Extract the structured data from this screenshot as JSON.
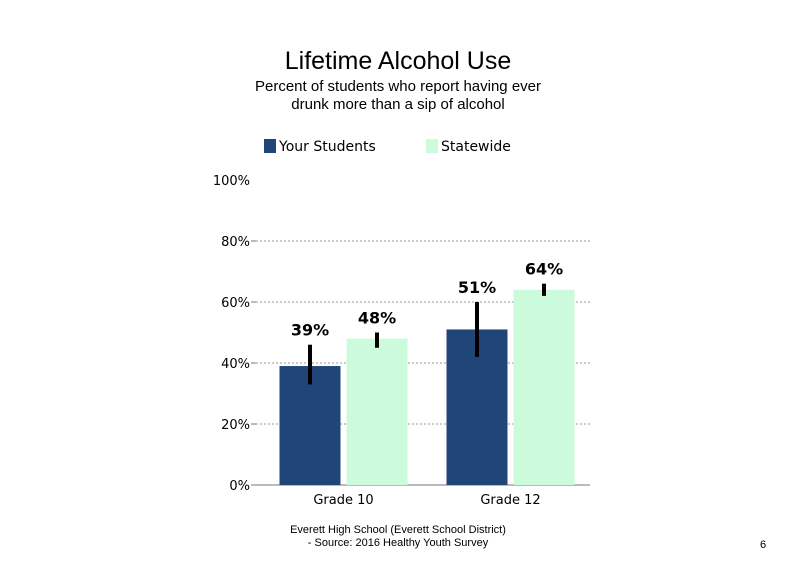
{
  "chart_data": {
    "type": "bar",
    "title": "Lifetime Alcohol Use",
    "subtitle": "Percent of students who report having ever drunk more than a sip of alcohol",
    "categories": [
      "Grade 10",
      "Grade 12"
    ],
    "series": [
      {
        "name": "Your Students",
        "color": "#1f4579",
        "values": [
          39,
          51
        ],
        "labels": [
          "39%",
          "51%"
        ],
        "error_low": [
          33,
          42
        ],
        "error_high": [
          46,
          60
        ]
      },
      {
        "name": "Statewide",
        "color": "#ccfbdc",
        "values": [
          48,
          64
        ],
        "labels": [
          "48%",
          "64%"
        ],
        "error_low": [
          45,
          62
        ],
        "error_high": [
          50,
          66
        ]
      }
    ],
    "ylim": [
      0,
      100
    ],
    "yticks": [
      0,
      20,
      40,
      60,
      80,
      100
    ],
    "ytick_labels": [
      "0%",
      "20%",
      "40%",
      "60%",
      "80%",
      "100%"
    ],
    "xlabel": "",
    "ylabel": "",
    "grid": true,
    "legend_position": "top"
  },
  "footer": {
    "line1": "Everett High  School (Everett School District)",
    "line2": "- Source: 2016 Healthy  Youth Survey"
  },
  "page_number": "6"
}
